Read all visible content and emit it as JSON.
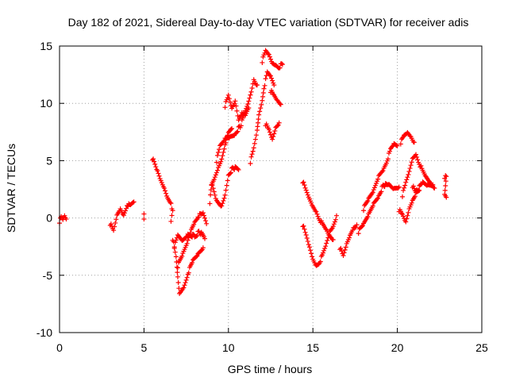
{
  "chart_data": {
    "type": "scatter",
    "title": "Day 182 of 2021, Sidereal Day-to-day VTEC variation (SDTVAR) for receiver adis",
    "xlabel": "GPS time / hours",
    "ylabel": "SDTVAR / TECUs",
    "xlim": [
      0,
      25
    ],
    "ylim": [
      -10,
      15
    ],
    "xticks": [
      0,
      5,
      10,
      15,
      20,
      25
    ],
    "yticks": [
      -10,
      -5,
      0,
      5,
      10,
      15
    ],
    "xtick_labels": [
      "0",
      "5",
      "10",
      "15",
      "20",
      "25"
    ],
    "ytick_labels": [
      "-10",
      "-5",
      "0",
      "5",
      "10",
      "15"
    ],
    "grid": true,
    "marker": "+",
    "series_color": "#ff0000",
    "segments": [
      [
        [
          0.0,
          -0.3
        ],
        [
          0.1,
          0.0
        ],
        [
          0.2,
          -0.2
        ],
        [
          0.3,
          0.2
        ],
        [
          0.4,
          -0.1
        ]
      ],
      [
        [
          3.0,
          -0.5
        ],
        [
          3.2,
          -1.2
        ],
        [
          3.4,
          0.2
        ],
        [
          3.6,
          0.8
        ],
        [
          3.8,
          0.3
        ],
        [
          4.0,
          1.2
        ],
        [
          4.2,
          1.0
        ],
        [
          4.4,
          1.4
        ]
      ],
      [
        [
          5.0,
          0.5
        ],
        [
          5.0,
          -0.1
        ]
      ],
      [
        [
          5.5,
          5.2
        ],
        [
          5.8,
          4.0
        ],
        [
          6.0,
          3.2
        ],
        [
          6.2,
          2.6
        ],
        [
          6.4,
          1.8
        ],
        [
          6.6,
          1.4
        ],
        [
          6.7,
          0.5
        ],
        [
          6.6,
          -0.3
        ]
      ],
      [
        [
          6.7,
          -1.8
        ],
        [
          6.9,
          -3.5
        ],
        [
          7.0,
          -5.2
        ],
        [
          7.1,
          -6.6
        ],
        [
          7.4,
          -5.8
        ],
        [
          7.6,
          -4.8
        ],
        [
          7.9,
          -3.8
        ],
        [
          8.2,
          -3.2
        ],
        [
          8.5,
          -2.6
        ]
      ],
      [
        [
          6.8,
          -2.5
        ],
        [
          7.0,
          -1.6
        ],
        [
          7.3,
          -2.0
        ],
        [
          7.6,
          -1.4
        ],
        [
          8.0,
          -1.6
        ],
        [
          8.3,
          -1.2
        ],
        [
          8.6,
          -1.8
        ]
      ],
      [
        [
          7.0,
          -4.2
        ],
        [
          7.3,
          -3.2
        ],
        [
          7.6,
          -2.0
        ],
        [
          7.8,
          -1.0
        ],
        [
          8.0,
          -0.3
        ],
        [
          8.2,
          0.2
        ],
        [
          8.5,
          0.3
        ],
        [
          8.7,
          -0.5
        ]
      ],
      [
        [
          8.9,
          1.4
        ],
        [
          9.0,
          2.8
        ],
        [
          9.2,
          3.5
        ],
        [
          9.4,
          4.4
        ],
        [
          9.6,
          5.2
        ],
        [
          9.8,
          6.5
        ],
        [
          10.0,
          7.3
        ],
        [
          10.2,
          7.8
        ]
      ],
      [
        [
          9.0,
          3.0
        ],
        [
          9.3,
          1.4
        ],
        [
          9.6,
          1.0
        ],
        [
          9.8,
          2.0
        ],
        [
          10.0,
          3.8
        ],
        [
          10.3,
          4.4
        ],
        [
          10.6,
          4.2
        ]
      ],
      [
        [
          9.3,
          5.0
        ],
        [
          9.5,
          6.2
        ],
        [
          9.8,
          6.9
        ],
        [
          10.1,
          7.1
        ],
        [
          10.4,
          7.4
        ],
        [
          10.7,
          8.0
        ],
        [
          11.0,
          9.2
        ],
        [
          11.2,
          10.1
        ],
        [
          11.4,
          11.3
        ],
        [
          11.5,
          12.1
        ],
        [
          11.7,
          11.6
        ]
      ],
      [
        [
          9.8,
          9.8
        ],
        [
          10.0,
          10.6
        ],
        [
          10.2,
          9.5
        ],
        [
          10.4,
          10.2
        ],
        [
          10.6,
          8.6
        ],
        [
          10.8,
          9.3
        ],
        [
          11.0,
          8.8
        ],
        [
          11.2,
          9.6
        ]
      ],
      [
        [
          11.3,
          4.9
        ],
        [
          11.5,
          6.0
        ],
        [
          11.7,
          7.6
        ],
        [
          11.8,
          9.0
        ],
        [
          12.0,
          10.3
        ],
        [
          12.1,
          11.4
        ],
        [
          12.3,
          12.6
        ],
        [
          12.5,
          12.3
        ],
        [
          12.7,
          11.6
        ]
      ],
      [
        [
          12.0,
          13.7
        ],
        [
          12.2,
          14.5
        ],
        [
          12.4,
          14.2
        ],
        [
          12.6,
          13.5
        ],
        [
          12.8,
          13.4
        ],
        [
          13.0,
          13.2
        ],
        [
          13.2,
          13.4
        ]
      ],
      [
        [
          12.5,
          11.1
        ],
        [
          12.7,
          10.6
        ],
        [
          12.9,
          10.2
        ],
        [
          13.1,
          9.9
        ]
      ],
      [
        [
          12.2,
          8.2
        ],
        [
          12.4,
          7.6
        ],
        [
          12.6,
          6.8
        ],
        [
          12.8,
          7.9
        ],
        [
          13.0,
          8.3
        ]
      ],
      [
        [
          14.4,
          3.2
        ],
        [
          14.6,
          2.3
        ],
        [
          14.8,
          1.6
        ],
        [
          15.0,
          1.0
        ],
        [
          15.2,
          0.6
        ],
        [
          15.4,
          -0.1
        ],
        [
          15.6,
          -0.7
        ],
        [
          15.8,
          -1.1
        ],
        [
          16.0,
          -1.6
        ],
        [
          16.2,
          -1.9
        ]
      ],
      [
        [
          14.4,
          -0.6
        ],
        [
          14.6,
          -1.6
        ],
        [
          14.8,
          -2.6
        ],
        [
          15.0,
          -3.6
        ],
        [
          15.2,
          -4.1
        ],
        [
          15.4,
          -3.8
        ],
        [
          15.6,
          -3.2
        ],
        [
          15.8,
          -2.3
        ],
        [
          16.0,
          -1.2
        ],
        [
          16.2,
          -0.7
        ],
        [
          16.4,
          0.2
        ]
      ],
      [
        [
          16.6,
          -2.6
        ],
        [
          16.8,
          -3.4
        ],
        [
          17.0,
          -2.3
        ],
        [
          17.2,
          -1.5
        ],
        [
          17.4,
          -0.8
        ],
        [
          17.6,
          -0.6
        ]
      ],
      [
        [
          17.7,
          -1.2
        ],
        [
          18.0,
          -0.6
        ],
        [
          18.3,
          0.3
        ],
        [
          18.6,
          1.3
        ],
        [
          18.9,
          2.0
        ],
        [
          19.2,
          2.9
        ],
        [
          19.5,
          2.8
        ],
        [
          19.8,
          2.5
        ],
        [
          20.1,
          2.7
        ]
      ],
      [
        [
          18.0,
          0.8
        ],
        [
          18.3,
          1.6
        ],
        [
          18.6,
          2.4
        ],
        [
          18.9,
          3.7
        ],
        [
          19.2,
          4.4
        ],
        [
          19.4,
          5.1
        ],
        [
          19.6,
          5.9
        ],
        [
          19.8,
          6.4
        ],
        [
          20.0,
          6.3
        ]
      ],
      [
        [
          20.2,
          6.6
        ],
        [
          20.4,
          7.1
        ],
        [
          20.6,
          7.4
        ],
        [
          20.8,
          7.1
        ],
        [
          21.0,
          6.6
        ]
      ],
      [
        [
          20.1,
          0.7
        ],
        [
          20.3,
          0.2
        ],
        [
          20.5,
          -0.4
        ],
        [
          20.7,
          0.8
        ],
        [
          20.9,
          1.6
        ],
        [
          21.2,
          2.5
        ],
        [
          21.5,
          3.0
        ],
        [
          21.8,
          2.8
        ],
        [
          22.1,
          2.9
        ]
      ],
      [
        [
          20.3,
          2.0
        ],
        [
          20.5,
          3.0
        ],
        [
          20.7,
          4.0
        ],
        [
          20.9,
          5.2
        ],
        [
          21.1,
          5.6
        ],
        [
          21.3,
          4.8
        ],
        [
          21.5,
          4.0
        ],
        [
          21.7,
          3.5
        ],
        [
          22.0,
          3.0
        ],
        [
          22.2,
          2.6
        ]
      ],
      [
        [
          20.9,
          2.8
        ],
        [
          21.1,
          2.1
        ],
        [
          21.3,
          2.4
        ]
      ],
      [
        [
          22.8,
          3.6
        ],
        [
          22.9,
          3.5
        ],
        [
          22.8,
          2.0
        ],
        [
          22.9,
          1.8
        ]
      ]
    ]
  }
}
